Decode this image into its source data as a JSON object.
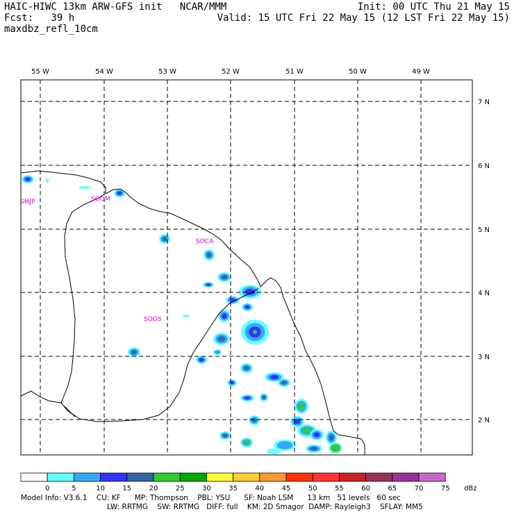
{
  "header": {
    "title": "HAIC-HIWC 13km ARW-GFS init   NCAR/MMM",
    "forecast": "Fcst:   39 h",
    "field": "maxdbz_refl_10cm",
    "init": "Init: 00 UTC Thu 21 May 15",
    "valid": "Valid: 15 UTC Fri 22 May 15 (12 LST Fri 22 May 15)"
  },
  "map": {
    "lon_labels": [
      "55 W",
      "54 W",
      "53 W",
      "52 W",
      "51 W",
      "50 W",
      "49 W"
    ],
    "lat_labels": [
      "7 N",
      "6 N",
      "5 N",
      "4 N",
      "3 N",
      "2 N"
    ],
    "stations": [
      "SMJP",
      "SOCA",
      "SOOM",
      "SOOS"
    ],
    "coast_color": "#000000",
    "grid_style": "dashed",
    "station_color": "#cc00cc"
  },
  "colorbar": {
    "ticks": [
      "0",
      "5",
      "10",
      "15",
      "20",
      "25",
      "30",
      "35",
      "40",
      "45",
      "50",
      "55",
      "60",
      "65",
      "70",
      "75"
    ],
    "unit": "dBz",
    "colors": [
      "#ffffff",
      "#66ffff",
      "#33aaff",
      "#3333ff",
      "#3366aa",
      "#33cc33",
      "#00aa00",
      "#ffff33",
      "#ffcc33",
      "#ff9933",
      "#ff3300",
      "#ff3333",
      "#cc2222",
      "#993355",
      "#993399",
      "#cc66cc"
    ]
  },
  "model_info": {
    "line1": "Model Info: V3.6.1    CU: KF      MP: Thompson    PBL: YSU      SF: Noah LSM      13 km   51 levels   60 sec",
    "line2": "LW: RRTMG    SW: RRTMG   DIFF: full    KM: 2D Smagor  DAMP: Rayleigh3    SFLAY: MM5"
  }
}
